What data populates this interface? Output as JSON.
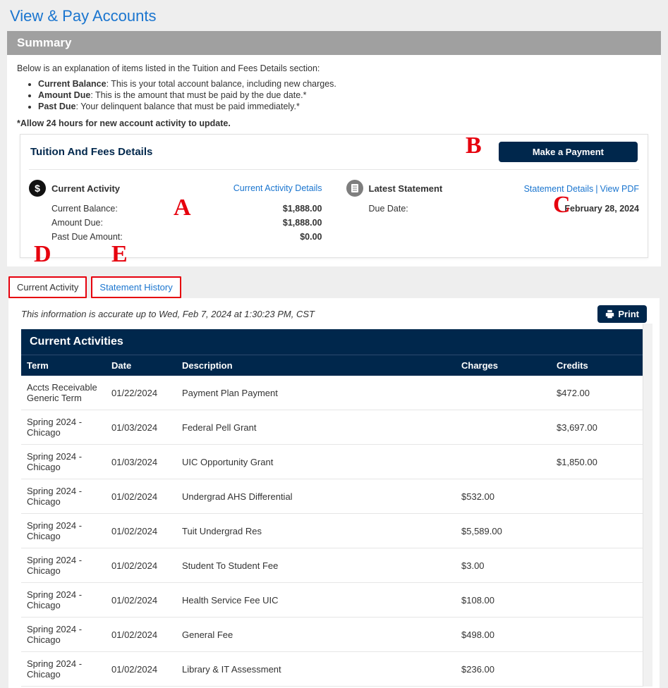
{
  "page_title": "View & Pay Accounts",
  "summary": {
    "header": "Summary",
    "intro": "Below is an explanation of items listed in the Tuition and Fees Details section:",
    "items": [
      {
        "term": "Current Balance",
        "desc": ": This is your total account balance, including new charges."
      },
      {
        "term": "Amount Due",
        "desc": ": This is the amount that must be paid by the due date.*"
      },
      {
        "term": "Past Due",
        "desc": ": Your delinquent balance that must be paid immediately.*"
      }
    ],
    "note": "*Allow 24 hours for new account activity to update."
  },
  "details": {
    "title": "Tuition And Fees Details",
    "make_payment": "Make a Payment",
    "current_activity_head": "Current Activity",
    "current_activity_link": "Current Activity Details",
    "latest_statement_head": "Latest Statement",
    "statement_details_link": "Statement Details",
    "view_pdf_link": "View PDF",
    "rows": {
      "current_balance_label": "Current Balance:",
      "current_balance_value": "$1,888.00",
      "amount_due_label": "Amount Due:",
      "amount_due_value": "$1,888.00",
      "past_due_label": "Past Due Amount:",
      "past_due_value": "$0.00",
      "due_date_label": "Due Date:",
      "due_date_value": "February 28, 2024"
    }
  },
  "callouts": {
    "A": "A",
    "B": "B",
    "C": "C",
    "D": "D",
    "E": "E"
  },
  "tabs": {
    "current_activity": "Current Activity",
    "statement_history": "Statement History"
  },
  "accuracy_line": "This information is accurate up to Wed, Feb 7, 2024 at 1:30:23 PM, CST",
  "print_label": "Print",
  "activities": {
    "title": "Current Activities",
    "columns": {
      "term": "Term",
      "date": "Date",
      "desc": "Description",
      "charges": "Charges",
      "credits": "Credits"
    },
    "rows": [
      {
        "term": "Accts Receivable Generic Term",
        "date": "01/22/2024",
        "desc": "Payment Plan Payment",
        "charges": "",
        "credits": "$472.00"
      },
      {
        "term": "Spring 2024 - Chicago",
        "date": "01/03/2024",
        "desc": "Federal Pell Grant",
        "charges": "",
        "credits": "$3,697.00"
      },
      {
        "term": "Spring 2024 - Chicago",
        "date": "01/03/2024",
        "desc": "UIC Opportunity Grant",
        "charges": "",
        "credits": "$1,850.00"
      },
      {
        "term": "Spring 2024 - Chicago",
        "date": "01/02/2024",
        "desc": "Undergrad AHS Differential",
        "charges": "$532.00",
        "credits": ""
      },
      {
        "term": "Spring 2024 - Chicago",
        "date": "01/02/2024",
        "desc": "Tuit Undergrad Res",
        "charges": "$5,589.00",
        "credits": ""
      },
      {
        "term": "Spring 2024 - Chicago",
        "date": "01/02/2024",
        "desc": "Student To Student Fee",
        "charges": "$3.00",
        "credits": ""
      },
      {
        "term": "Spring 2024 - Chicago",
        "date": "01/02/2024",
        "desc": "Health Service Fee UIC",
        "charges": "$108.00",
        "credits": ""
      },
      {
        "term": "Spring 2024 - Chicago",
        "date": "01/02/2024",
        "desc": "General Fee",
        "charges": "$498.00",
        "credits": ""
      },
      {
        "term": "Spring 2024 - Chicago",
        "date": "01/02/2024",
        "desc": "Library & IT Assessment",
        "charges": "$236.00",
        "credits": ""
      }
    ]
  }
}
